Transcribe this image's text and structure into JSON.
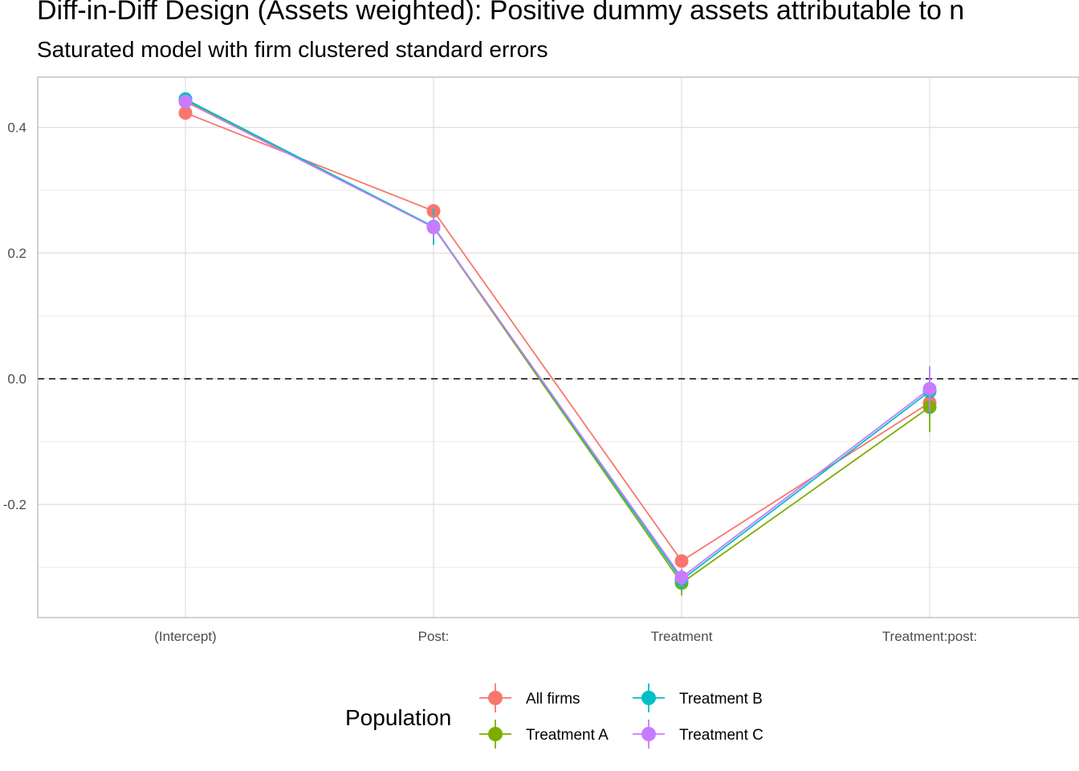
{
  "chart_data": {
    "type": "line",
    "title": "Diff-in-Diff Design (Assets weighted): Positive dummy assets attributable to n",
    "subtitle": "Saturated model with firm clustered standard errors",
    "xlabel": "",
    "ylabel": "",
    "categories": [
      "(Intercept)",
      "Post:",
      "Treatment",
      "Treatment:post:"
    ],
    "ylim": [
      -0.38,
      0.48
    ],
    "yticks": [
      -0.2,
      0.0,
      0.2,
      0.4
    ],
    "ytick_labels": [
      "-0.2",
      "0.0",
      "0.2",
      "0.4"
    ],
    "reference_line": {
      "y": 0.0,
      "style": "dashed"
    },
    "grid": true,
    "legend": {
      "title": "Population",
      "position": "bottom"
    },
    "series": [
      {
        "name": "All firms",
        "color": "#F8766D",
        "values": [
          0.423,
          0.267,
          -0.29,
          -0.038
        ],
        "ci_low": [
          0.418,
          0.262,
          -0.3,
          -0.055
        ],
        "ci_high": [
          0.428,
          0.272,
          -0.28,
          -0.021
        ]
      },
      {
        "name": "Treatment A",
        "color": "#7CAE00",
        "values": [
          0.443,
          0.241,
          -0.325,
          -0.045
        ],
        "ci_low": [
          0.438,
          0.215,
          -0.345,
          -0.085
        ],
        "ci_high": [
          0.448,
          0.267,
          -0.305,
          -0.005
        ]
      },
      {
        "name": "Treatment B",
        "color": "#00BFC4",
        "values": [
          0.445,
          0.242,
          -0.32,
          -0.02
        ],
        "ci_low": [
          0.44,
          0.213,
          -0.338,
          -0.058
        ],
        "ci_high": [
          0.45,
          0.271,
          -0.302,
          0.018
        ]
      },
      {
        "name": "Treatment C",
        "color": "#C77CFF",
        "values": [
          0.441,
          0.241,
          -0.316,
          -0.016
        ],
        "ci_low": [
          0.436,
          0.222,
          -0.33,
          -0.052
        ],
        "ci_high": [
          0.446,
          0.26,
          -0.302,
          0.02
        ]
      }
    ]
  }
}
